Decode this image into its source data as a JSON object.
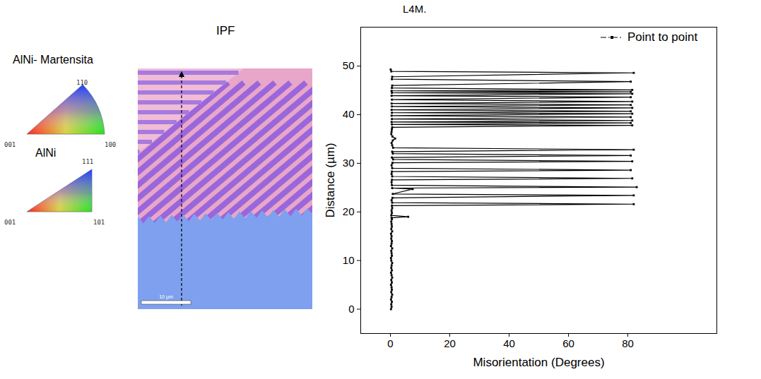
{
  "figure": {
    "label": "L4M.",
    "map_title": "IPF",
    "keys": [
      {
        "title": "AlNi- Martensita",
        "corners": [
          "001",
          "100",
          "110"
        ]
      },
      {
        "title": "AlNi",
        "corners": [
          "001",
          "101",
          "111"
        ]
      }
    ],
    "scale_bar": "10 µm"
  },
  "chart_data": {
    "type": "line",
    "x_label": "Misorientation (Degrees)",
    "y_label": "Distance (µm)",
    "xlim": [
      -10,
      110
    ],
    "xticks": [
      0,
      20,
      40,
      60,
      80
    ],
    "ylim": [
      -5,
      58
    ],
    "yticks": [
      0,
      10,
      20,
      30,
      40,
      50
    ],
    "legend": "upper right",
    "grid": false,
    "x": [
      0.2,
      0.4,
      0.3,
      0.5,
      0.2,
      0.4,
      0.6,
      0.3,
      0.5,
      0.4,
      0.2,
      0.5,
      0.3,
      0.6,
      0.4,
      0.2,
      0.5,
      0.3,
      0.4,
      0.6,
      0.3,
      0.2,
      0.5,
      0.4,
      0.3,
      0.6,
      0.2,
      0.4,
      0.5,
      0.3,
      0.4,
      0.2,
      0.6,
      0.3,
      0.5,
      0.4,
      0.3,
      0.5,
      0.4,
      6,
      0.3,
      0.5,
      0.4,
      0.6,
      0.5,
      82,
      0.6,
      0.4,
      0.7,
      82,
      0.8,
      7.5,
      0.6,
      83,
      0.5,
      0.4,
      0.5,
      81.5,
      0.6,
      0.4,
      0.5,
      81,
      0.6,
      0.4,
      0.7,
      81.5,
      0.9,
      0.5,
      81,
      0.8,
      0.6,
      82,
      0.9,
      0.6,
      0.4,
      0.8,
      1.6,
      0.7,
      0.3,
      0.4,
      0.5,
      0.6,
      81.5,
      0.5,
      81,
      0.4,
      81.5,
      0.5,
      81,
      0.4,
      81.5,
      0.5,
      81,
      0.4,
      81.5,
      0.5,
      81,
      0.4,
      81.5,
      0.5,
      81,
      0.4,
      81.5,
      0.5,
      81,
      0.4,
      81.5,
      0.5,
      0.6,
      81,
      0.5,
      0.6,
      82,
      0.3,
      0.1
    ],
    "series": [
      {
        "name": "Point to point",
        "color": "#000000",
        "marker": "square",
        "line_style": "solid",
        "values": [
          0,
          0.5,
          1,
          1.5,
          2,
          2.5,
          3,
          3.5,
          4,
          4.5,
          5,
          5.5,
          6,
          6.5,
          7,
          7.5,
          8,
          8.5,
          9,
          9.5,
          10,
          10.5,
          11,
          11.5,
          12,
          12.5,
          13,
          13.5,
          14,
          14.5,
          15,
          15.5,
          16,
          16.5,
          17,
          17.5,
          18,
          18.5,
          18.8,
          19.0,
          19.3,
          19.8,
          20.3,
          20.8,
          21.3,
          21.6,
          21.9,
          22.4,
          22.9,
          23.4,
          23.7,
          24.7,
          24.9,
          25.1,
          25.5,
          26.1,
          26.6,
          26.9,
          27.3,
          27.8,
          28.3,
          28.6,
          29.0,
          29.6,
          30.1,
          30.4,
          30.8,
          31.2,
          31.6,
          32.0,
          32.4,
          32.8,
          33.2,
          33.7,
          34.2,
          34.7,
          35.1,
          35.5,
          36.0,
          36.5,
          37.0,
          37.4,
          37.8,
          38.0,
          38.3,
          38.5,
          38.8,
          39.1,
          39.5,
          39.8,
          40.2,
          40.4,
          40.7,
          41.0,
          41.4,
          41.7,
          42.0,
          42.3,
          42.7,
          43.1,
          43.6,
          43.9,
          44.3,
          44.5,
          44.7,
          44.9,
          45.1,
          45.5,
          46.0,
          46.8,
          47.3,
          47.8,
          48.6,
          48.9,
          49.3
        ]
      }
    ]
  }
}
